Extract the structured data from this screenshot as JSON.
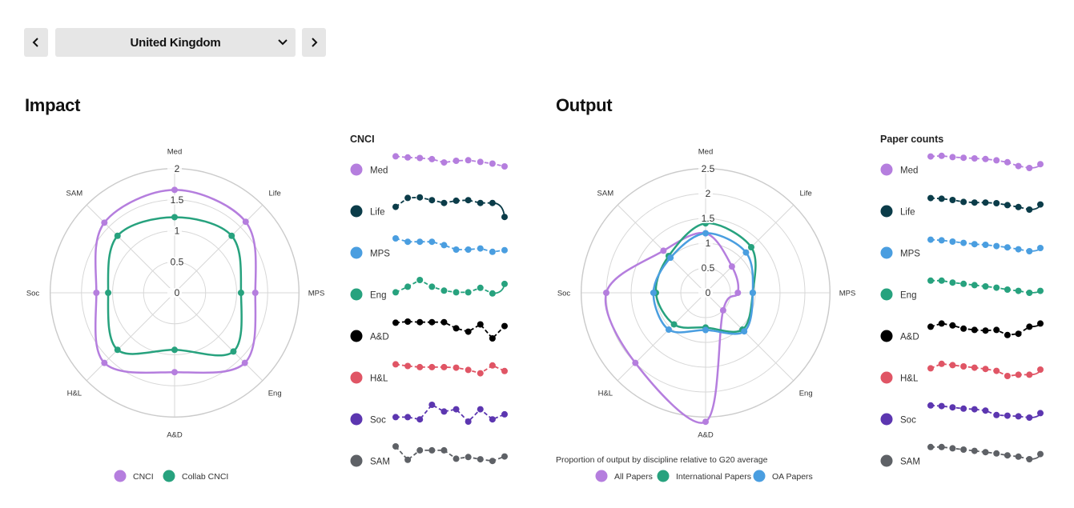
{
  "nav": {
    "prev_icon": "chevron-left-icon",
    "next_icon": "chevron-right-icon",
    "country": "United Kingdom",
    "dropdown_icon": "chevron-down-icon"
  },
  "sections": {
    "impact_title": "Impact",
    "output_title": "Output"
  },
  "colors": {
    "Med": "#b57ede",
    "Life": "#0b3c49",
    "MPS": "#4a9ee0",
    "Eng": "#27a27e",
    "A&D": "#000000",
    "H&L": "#e05565",
    "Soc": "#5c36b0",
    "SAM": "#5e6166",
    "cnci": "#b57ede",
    "collab": "#27a27e",
    "all": "#b57ede",
    "intl": "#27a27e",
    "oa": "#4a9ee0",
    "grid": "#d7d7d7"
  },
  "chart_data": [
    {
      "type": "radar",
      "axes": [
        "Med",
        "Life",
        "MPS",
        "Eng",
        "A&D",
        "H&L",
        "Soc",
        "SAM"
      ],
      "rlim": [
        0,
        2
      ],
      "ticks": [
        "0",
        "0.5",
        "1",
        "1.5",
        "2"
      ],
      "tick_values": [
        0,
        0.5,
        1,
        1.5,
        2
      ],
      "series": [
        {
          "name": "CNCI",
          "key": "cnci",
          "values": [
            1.66,
            1.62,
            1.3,
            1.6,
            1.28,
            1.6,
            1.26,
            1.6
          ]
        },
        {
          "name": "Collab CNCI",
          "key": "collab",
          "values": [
            1.22,
            1.3,
            1.07,
            1.34,
            0.92,
            1.3,
            1.07,
            1.3
          ]
        }
      ]
    },
    {
      "type": "line",
      "title": "CNCI",
      "series": [
        {
          "name": "Med",
          "values": [
            0.1,
            0.2,
            0.25,
            0.35,
            0.65,
            0.5,
            0.45,
            0.6,
            0.75,
            1.0
          ],
          "last_solid": false
        },
        {
          "name": "Life",
          "values": [
            0.9,
            0.1,
            0.05,
            0.3,
            0.55,
            0.35,
            0.3,
            0.55,
            0.55,
            1.8
          ],
          "last_solid": true
        },
        {
          "name": "MPS",
          "values": [
            0.0,
            0.3,
            0.3,
            0.3,
            0.6,
            1.0,
            1.0,
            0.9,
            1.2,
            1.05
          ],
          "last_solid": false
        },
        {
          "name": "Eng",
          "values": [
            1.1,
            0.6,
            0.0,
            0.6,
            0.95,
            1.1,
            1.1,
            0.7,
            1.2,
            0.35
          ],
          "last_solid": true
        },
        {
          "name": "A&D",
          "values": [
            0.1,
            0.0,
            0.05,
            0.05,
            0.05,
            0.6,
            0.9,
            0.25,
            1.5,
            0.4
          ],
          "last_solid": false
        },
        {
          "name": "H&L",
          "values": [
            0.1,
            0.25,
            0.35,
            0.35,
            0.35,
            0.4,
            0.6,
            0.9,
            0.2,
            0.7
          ],
          "last_solid": false
        },
        {
          "name": "Soc",
          "values": [
            1.1,
            1.1,
            1.3,
            0.0,
            0.6,
            0.4,
            1.5,
            0.4,
            1.3,
            0.85
          ],
          "last_solid": false
        },
        {
          "name": "SAM",
          "values": [
            0.0,
            1.2,
            0.35,
            0.35,
            0.35,
            1.1,
            0.95,
            1.15,
            1.3,
            0.9
          ],
          "last_solid": false
        }
      ]
    },
    {
      "type": "radar",
      "axes": [
        "Med",
        "Life",
        "MPS",
        "Eng",
        "A&D",
        "H&L",
        "Soc",
        "SAM"
      ],
      "rlim": [
        0,
        2.5
      ],
      "ticks": [
        "0",
        "0.5",
        "1",
        "1.5",
        "2",
        "2.5"
      ],
      "tick_values": [
        0,
        0.5,
        1,
        1.5,
        2,
        2.5
      ],
      "series": [
        {
          "name": "All Papers",
          "key": "all",
          "values": [
            1.2,
            0.75,
            0.65,
            0.5,
            2.6,
            2.0,
            2.0,
            1.2
          ]
        },
        {
          "name": "International Papers",
          "key": "intl",
          "values": [
            1.4,
            1.3,
            0.95,
            1.05,
            0.7,
            0.9,
            1.0,
            1.05
          ]
        },
        {
          "name": "OA Papers",
          "key": "oa",
          "values": [
            1.2,
            1.15,
            0.95,
            1.1,
            0.75,
            1.05,
            1.05,
            1.0
          ]
        }
      ]
    },
    {
      "type": "line",
      "title": "Paper counts",
      "series": [
        {
          "name": "Med",
          "values": [
            0.1,
            0.05,
            0.15,
            0.2,
            0.25,
            0.3,
            0.4,
            0.55,
            0.85,
            1.0,
            0.7
          ],
          "last_solid": true
        },
        {
          "name": "Life",
          "values": [
            0.1,
            0.15,
            0.25,
            0.4,
            0.45,
            0.45,
            0.5,
            0.65,
            0.8,
            1.0,
            0.6
          ],
          "last_solid": true
        },
        {
          "name": "MPS",
          "values": [
            0.1,
            0.15,
            0.25,
            0.35,
            0.45,
            0.5,
            0.6,
            0.7,
            0.85,
            1.0,
            0.75
          ],
          "last_solid": true
        },
        {
          "name": "Eng",
          "values": [
            0.05,
            0.05,
            0.2,
            0.3,
            0.4,
            0.5,
            0.6,
            0.75,
            0.85,
            1.0,
            0.85
          ],
          "last_solid": true
        },
        {
          "name": "A&D",
          "values": [
            0.4,
            0.15,
            0.3,
            0.55,
            0.65,
            0.7,
            0.65,
            1.05,
            0.95,
            0.4,
            0.15
          ],
          "last_solid": true
        },
        {
          "name": "H&L",
          "values": [
            0.4,
            0.05,
            0.15,
            0.25,
            0.35,
            0.45,
            0.6,
            1.0,
            0.9,
            0.9,
            0.5
          ],
          "last_solid": true
        },
        {
          "name": "Soc",
          "values": [
            0.05,
            0.1,
            0.2,
            0.3,
            0.35,
            0.45,
            0.8,
            0.85,
            0.9,
            1.0,
            0.65
          ],
          "last_solid": true
        },
        {
          "name": "SAM",
          "values": [
            0.05,
            0.05,
            0.15,
            0.25,
            0.35,
            0.45,
            0.55,
            0.7,
            0.8,
            1.0,
            0.6
          ],
          "last_solid": true
        }
      ]
    }
  ],
  "legends": {
    "impact": [
      "CNCI",
      "Collab CNCI"
    ],
    "output_caption": "Proportion of output by discipline relative to G20 average",
    "output": [
      "All Papers",
      "International Papers",
      "OA Papers"
    ]
  }
}
